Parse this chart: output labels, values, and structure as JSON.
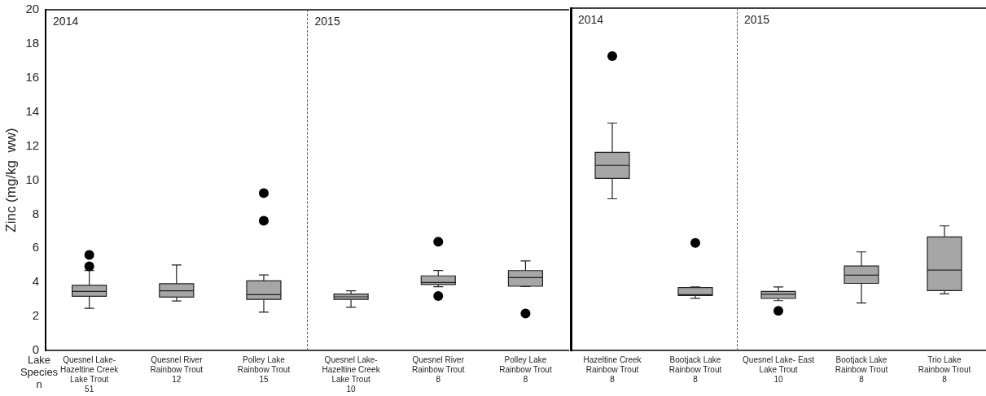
{
  "chart_data": [
    {
      "type": "box",
      "ylabel": "Zinc (mg/kg  ww)",
      "categories": [
        "Quesnel Lake-\nHazeltine Creek\nLake Trout\n51",
        "Quesnel River\nRainbow Trout\n12",
        "Polley Lake\nRainbow Trout\n15",
        "Quesnel Lake-\nHazeltine Creek\nLake Trout\n10",
        "Quesnel River\nRainbow Trout\n8",
        "Polley Lake\nRainbow Trout\n8"
      ],
      "color": "#a6a6a6",
      "boxes": [
        {
          "low": 2.48,
          "q1": 3.18,
          "median": 3.47,
          "q3": 3.82,
          "high": 4.7,
          "outliers": [
            4.94,
            5.61
          ]
        },
        {
          "low": 2.91,
          "q1": 3.13,
          "median": 3.5,
          "q3": 3.92,
          "high": 5.02
        },
        {
          "low": 2.25,
          "q1": 3.0,
          "median": 3.28,
          "q3": 4.09,
          "high": 4.43,
          "outliers": [
            7.61,
            9.24
          ]
        },
        {
          "low": 2.54,
          "q1": 3.0,
          "median": 3.15,
          "q3": 3.31,
          "high": 3.5
        },
        {
          "low": 3.74,
          "q1": 3.87,
          "median": 3.99,
          "q3": 4.38,
          "high": 4.7,
          "outliers": [
            3.2,
            6.38
          ]
        },
        {
          "low": 3.75,
          "q1": 3.77,
          "median": 4.28,
          "q3": 4.69,
          "high": 5.26,
          "outliers": [
            2.17
          ]
        }
      ],
      "ylim": [
        0,
        20
      ],
      "yticks": [
        0,
        2,
        4,
        6,
        8,
        10,
        12,
        14,
        16,
        18,
        20
      ],
      "annotations": [
        "2014",
        "2015",
        "Lake",
        "Species",
        "n"
      ]
    },
    {
      "type": "box",
      "categories": [
        "Hazeltine Creek\nRainbow Trout\n8",
        "Bootjack Lake\nRainbow Trout\n8",
        "Quesnel Lake- East\nLake Trout\n10",
        "Bootjack Lake\nRainbow Trout\n8",
        "Trio Lake\nRainbow Trout\n8"
      ],
      "color": "#a6a6a6",
      "boxes": [
        {
          "low": 8.86,
          "q1": 10.05,
          "median": 10.82,
          "q3": 11.57,
          "high": 13.29,
          "outliers": [
            17.2
          ]
        },
        {
          "low": 3.05,
          "q1": 3.21,
          "median": 3.26,
          "q3": 3.68,
          "high": 3.71,
          "outliers": [
            6.28
          ]
        },
        {
          "low": 2.91,
          "q1": 3.04,
          "median": 3.28,
          "q3": 3.45,
          "high": 3.71,
          "outliers": [
            2.32
          ]
        },
        {
          "low": 2.77,
          "q1": 3.92,
          "median": 4.4,
          "q3": 4.93,
          "high": 5.76
        },
        {
          "low": 3.31,
          "q1": 3.5,
          "median": 4.7,
          "q3": 6.63,
          "high": 7.28
        }
      ],
      "ylim": [
        0,
        20
      ],
      "tick_labels": "x",
      "annotations": [
        "2014",
        "2015"
      ]
    }
  ]
}
